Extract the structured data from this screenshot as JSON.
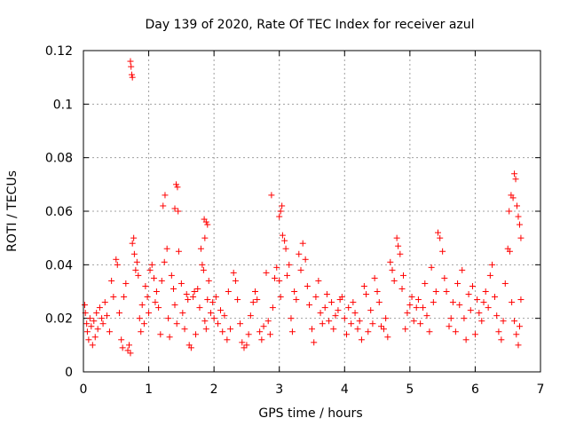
{
  "chart_data": {
    "type": "scatter",
    "title": "Day 139 of 2020, Rate Of TEC Index for receiver azul",
    "xlabel": "GPS time / hours",
    "ylabel": "ROTI / TECUs",
    "xlim": [
      0,
      7
    ],
    "ylim": [
      0,
      0.12
    ],
    "xticks": [
      "0",
      "1",
      "2",
      "3",
      "4",
      "5",
      "6",
      "7"
    ],
    "yticks": [
      "0",
      "0.02",
      "0.04",
      "0.06",
      "0.08",
      "0.1",
      "0.12"
    ],
    "grid": true,
    "marker": "+",
    "color": "#ff0000",
    "series": [
      {
        "points": [
          [
            0.72,
            0.116
          ],
          [
            0.73,
            0.114
          ],
          [
            0.74,
            0.111
          ],
          [
            0.75,
            0.11
          ],
          [
            1.25,
            0.066
          ],
          [
            1.22,
            0.062
          ],
          [
            1.42,
            0.07
          ],
          [
            1.44,
            0.069
          ],
          [
            1.4,
            0.061
          ],
          [
            1.45,
            0.06
          ],
          [
            1.85,
            0.057
          ],
          [
            1.88,
            0.056
          ],
          [
            1.9,
            0.055
          ],
          [
            1.86,
            0.05
          ],
          [
            2.88,
            0.066
          ],
          [
            3.04,
            0.062
          ],
          [
            3.02,
            0.06
          ],
          [
            3.0,
            0.058
          ],
          [
            6.55,
            0.066
          ],
          [
            6.58,
            0.065
          ],
          [
            6.6,
            0.074
          ],
          [
            6.62,
            0.072
          ],
          [
            6.64,
            0.062
          ],
          [
            6.66,
            0.058
          ],
          [
            6.68,
            0.055
          ],
          [
            6.7,
            0.05
          ],
          [
            6.52,
            0.06
          ],
          [
            0.02,
            0.025
          ],
          [
            0.03,
            0.022
          ],
          [
            0.05,
            0.018
          ],
          [
            0.06,
            0.015
          ],
          [
            0.08,
            0.012
          ],
          [
            0.1,
            0.02
          ],
          [
            0.12,
            0.017
          ],
          [
            0.14,
            0.01
          ],
          [
            0.16,
            0.019
          ],
          [
            0.18,
            0.013
          ],
          [
            0.2,
            0.022
          ],
          [
            0.22,
            0.016
          ],
          [
            0.25,
            0.024
          ],
          [
            0.28,
            0.02
          ],
          [
            0.3,
            0.018
          ],
          [
            0.33,
            0.026
          ],
          [
            0.36,
            0.021
          ],
          [
            0.4,
            0.015
          ],
          [
            0.43,
            0.034
          ],
          [
            0.46,
            0.028
          ],
          [
            0.5,
            0.042
          ],
          [
            0.52,
            0.04
          ],
          [
            0.55,
            0.022
          ],
          [
            0.58,
            0.012
          ],
          [
            0.6,
            0.009
          ],
          [
            0.62,
            0.028
          ],
          [
            0.65,
            0.033
          ],
          [
            0.68,
            0.008
          ],
          [
            0.7,
            0.01
          ],
          [
            0.72,
            0.007
          ],
          [
            0.75,
            0.048
          ],
          [
            0.77,
            0.05
          ],
          [
            0.78,
            0.044
          ],
          [
            0.8,
            0.038
          ],
          [
            0.82,
            0.041
          ],
          [
            0.84,
            0.036
          ],
          [
            0.86,
            0.02
          ],
          [
            0.88,
            0.015
          ],
          [
            0.9,
            0.025
          ],
          [
            0.93,
            0.018
          ],
          [
            0.95,
            0.032
          ],
          [
            0.98,
            0.028
          ],
          [
            1.0,
            0.022
          ],
          [
            1.02,
            0.038
          ],
          [
            1.05,
            0.04
          ],
          [
            1.08,
            0.035
          ],
          [
            1.1,
            0.026
          ],
          [
            1.12,
            0.03
          ],
          [
            1.15,
            0.024
          ],
          [
            1.18,
            0.014
          ],
          [
            1.2,
            0.034
          ],
          [
            1.24,
            0.041
          ],
          [
            1.28,
            0.046
          ],
          [
            1.3,
            0.02
          ],
          [
            1.32,
            0.013
          ],
          [
            1.35,
            0.036
          ],
          [
            1.38,
            0.031
          ],
          [
            1.4,
            0.025
          ],
          [
            1.43,
            0.018
          ],
          [
            1.46,
            0.045
          ],
          [
            1.5,
            0.033
          ],
          [
            1.52,
            0.022
          ],
          [
            1.55,
            0.016
          ],
          [
            1.58,
            0.029
          ],
          [
            1.6,
            0.027
          ],
          [
            1.62,
            0.01
          ],
          [
            1.65,
            0.009
          ],
          [
            1.68,
            0.028
          ],
          [
            1.7,
            0.03
          ],
          [
            1.72,
            0.014
          ],
          [
            1.75,
            0.031
          ],
          [
            1.78,
            0.024
          ],
          [
            1.8,
            0.046
          ],
          [
            1.82,
            0.04
          ],
          [
            1.84,
            0.038
          ],
          [
            1.86,
            0.019
          ],
          [
            1.88,
            0.016
          ],
          [
            1.9,
            0.027
          ],
          [
            1.92,
            0.034
          ],
          [
            1.95,
            0.022
          ],
          [
            1.98,
            0.026
          ],
          [
            2.0,
            0.02
          ],
          [
            2.03,
            0.028
          ],
          [
            2.06,
            0.018
          ],
          [
            2.1,
            0.023
          ],
          [
            2.13,
            0.015
          ],
          [
            2.16,
            0.021
          ],
          [
            2.2,
            0.012
          ],
          [
            2.22,
            0.03
          ],
          [
            2.25,
            0.016
          ],
          [
            2.3,
            0.037
          ],
          [
            2.33,
            0.034
          ],
          [
            2.36,
            0.027
          ],
          [
            2.4,
            0.018
          ],
          [
            2.43,
            0.011
          ],
          [
            2.46,
            0.009
          ],
          [
            2.5,
            0.01
          ],
          [
            2.53,
            0.014
          ],
          [
            2.56,
            0.021
          ],
          [
            2.6,
            0.026
          ],
          [
            2.63,
            0.03
          ],
          [
            2.66,
            0.027
          ],
          [
            2.7,
            0.015
          ],
          [
            2.73,
            0.012
          ],
          [
            2.76,
            0.017
          ],
          [
            2.8,
            0.037
          ],
          [
            2.83,
            0.019
          ],
          [
            2.86,
            0.014
          ],
          [
            2.9,
            0.024
          ],
          [
            2.93,
            0.035
          ],
          [
            2.96,
            0.039
          ],
          [
            3.0,
            0.034
          ],
          [
            3.02,
            0.028
          ],
          [
            3.05,
            0.051
          ],
          [
            3.08,
            0.049
          ],
          [
            3.1,
            0.046
          ],
          [
            3.12,
            0.036
          ],
          [
            3.15,
            0.04
          ],
          [
            3.18,
            0.02
          ],
          [
            3.2,
            0.015
          ],
          [
            3.23,
            0.03
          ],
          [
            3.26,
            0.027
          ],
          [
            3.3,
            0.044
          ],
          [
            3.33,
            0.038
          ],
          [
            3.36,
            0.048
          ],
          [
            3.4,
            0.042
          ],
          [
            3.43,
            0.032
          ],
          [
            3.46,
            0.025
          ],
          [
            3.5,
            0.016
          ],
          [
            3.53,
            0.011
          ],
          [
            3.56,
            0.028
          ],
          [
            3.6,
            0.034
          ],
          [
            3.63,
            0.022
          ],
          [
            3.66,
            0.018
          ],
          [
            3.7,
            0.024
          ],
          [
            3.73,
            0.029
          ],
          [
            3.76,
            0.019
          ],
          [
            3.8,
            0.026
          ],
          [
            3.83,
            0.016
          ],
          [
            3.86,
            0.021
          ],
          [
            3.9,
            0.023
          ],
          [
            3.93,
            0.027
          ],
          [
            3.96,
            0.028
          ],
          [
            4.0,
            0.02
          ],
          [
            4.03,
            0.014
          ],
          [
            4.06,
            0.024
          ],
          [
            4.1,
            0.018
          ],
          [
            4.13,
            0.026
          ],
          [
            4.16,
            0.022
          ],
          [
            4.2,
            0.016
          ],
          [
            4.23,
            0.019
          ],
          [
            4.26,
            0.012
          ],
          [
            4.3,
            0.032
          ],
          [
            4.33,
            0.029
          ],
          [
            4.36,
            0.015
          ],
          [
            4.4,
            0.023
          ],
          [
            4.43,
            0.018
          ],
          [
            4.46,
            0.035
          ],
          [
            4.5,
            0.03
          ],
          [
            4.53,
            0.026
          ],
          [
            4.56,
            0.017
          ],
          [
            4.6,
            0.016
          ],
          [
            4.63,
            0.02
          ],
          [
            4.66,
            0.013
          ],
          [
            4.7,
            0.041
          ],
          [
            4.73,
            0.038
          ],
          [
            4.76,
            0.034
          ],
          [
            4.8,
            0.05
          ],
          [
            4.82,
            0.047
          ],
          [
            4.85,
            0.044
          ],
          [
            4.88,
            0.031
          ],
          [
            4.9,
            0.036
          ],
          [
            4.93,
            0.016
          ],
          [
            4.96,
            0.022
          ],
          [
            5.0,
            0.025
          ],
          [
            5.03,
            0.028
          ],
          [
            5.06,
            0.019
          ],
          [
            5.1,
            0.024
          ],
          [
            5.13,
            0.027
          ],
          [
            5.16,
            0.018
          ],
          [
            5.2,
            0.024
          ],
          [
            5.23,
            0.033
          ],
          [
            5.26,
            0.021
          ],
          [
            5.3,
            0.015
          ],
          [
            5.33,
            0.039
          ],
          [
            5.36,
            0.026
          ],
          [
            5.4,
            0.03
          ],
          [
            5.43,
            0.052
          ],
          [
            5.46,
            0.05
          ],
          [
            5.5,
            0.045
          ],
          [
            5.53,
            0.035
          ],
          [
            5.56,
            0.03
          ],
          [
            5.6,
            0.017
          ],
          [
            5.63,
            0.02
          ],
          [
            5.66,
            0.026
          ],
          [
            5.7,
            0.015
          ],
          [
            5.73,
            0.033
          ],
          [
            5.76,
            0.025
          ],
          [
            5.8,
            0.038
          ],
          [
            5.83,
            0.02
          ],
          [
            5.86,
            0.012
          ],
          [
            5.9,
            0.029
          ],
          [
            5.93,
            0.023
          ],
          [
            5.96,
            0.032
          ],
          [
            6.0,
            0.014
          ],
          [
            6.03,
            0.027
          ],
          [
            6.06,
            0.022
          ],
          [
            6.1,
            0.019
          ],
          [
            6.13,
            0.026
          ],
          [
            6.16,
            0.03
          ],
          [
            6.2,
            0.024
          ],
          [
            6.23,
            0.036
          ],
          [
            6.26,
            0.04
          ],
          [
            6.3,
            0.028
          ],
          [
            6.33,
            0.021
          ],
          [
            6.36,
            0.015
          ],
          [
            6.4,
            0.012
          ],
          [
            6.43,
            0.019
          ],
          [
            6.46,
            0.033
          ],
          [
            6.5,
            0.046
          ],
          [
            6.53,
            0.045
          ],
          [
            6.56,
            0.026
          ],
          [
            6.6,
            0.019
          ],
          [
            6.63,
            0.014
          ],
          [
            6.66,
            0.01
          ],
          [
            6.68,
            0.017
          ],
          [
            6.7,
            0.027
          ]
        ]
      }
    ]
  }
}
